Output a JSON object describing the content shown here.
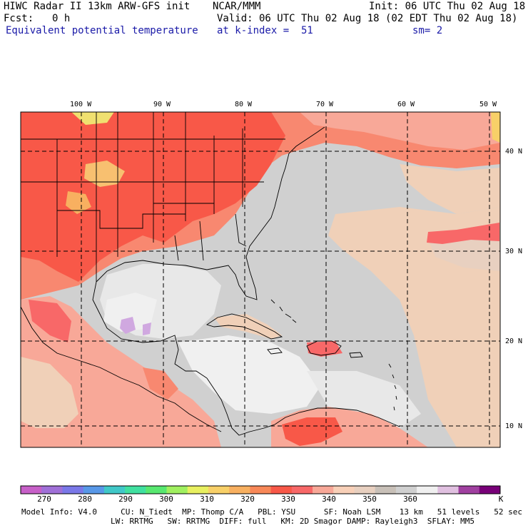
{
  "header": {
    "model_title": "HIWC Radar II 13km ARW-GFS init",
    "org": "NCAR/MMM",
    "init": "Init: 06 UTC Thu 02 Aug 18",
    "fcst_label": "Fcst:",
    "fcst_value": "0 h",
    "valid": "Valid: 06 UTC Thu 02 Aug 18 (02 EDT Thu 02 Aug 18)",
    "field_name": "Equivalent potential temperature",
    "level": "at k-index =  51",
    "smoothing": "sm= 2"
  },
  "map": {
    "lon_labels": [
      "100 W",
      "90 W",
      "80 W",
      "70 W",
      "60 W",
      "50 W"
    ],
    "lat_labels": [
      "40 N",
      "30 N",
      "20 N",
      "10 N"
    ]
  },
  "colorbar": {
    "unit": "K",
    "tick_labels": [
      "270",
      "280",
      "290",
      "300",
      "310",
      "320",
      "330",
      "340",
      "350",
      "360"
    ],
    "colors": [
      "#c760c8",
      "#a070d8",
      "#7a78e8",
      "#5898e8",
      "#40c8c8",
      "#40e0a0",
      "#58e870",
      "#a0f060",
      "#e8f060",
      "#f8d068",
      "#f8b060",
      "#f88858",
      "#f85848",
      "#f86868",
      "#f8a898",
      "#f8d0b8",
      "#e8d0c0",
      "#c8c0b8",
      "#d0d0d0",
      "#f0f0f0",
      "#e0c0e0",
      "#a040a0",
      "#780078"
    ]
  },
  "footer": {
    "line1": "Model Info: V4.0     CU: N_Tiedt  MP: Thomp C/A   PBL: YSU      SF: Noah LSM    13 km   51 levels   52 sec",
    "line2": "LW: RRTMG   SW: RRTMG  DIFF: full   KM: 2D Smagor DAMP: Rayleigh3  SFLAY: MM5"
  }
}
